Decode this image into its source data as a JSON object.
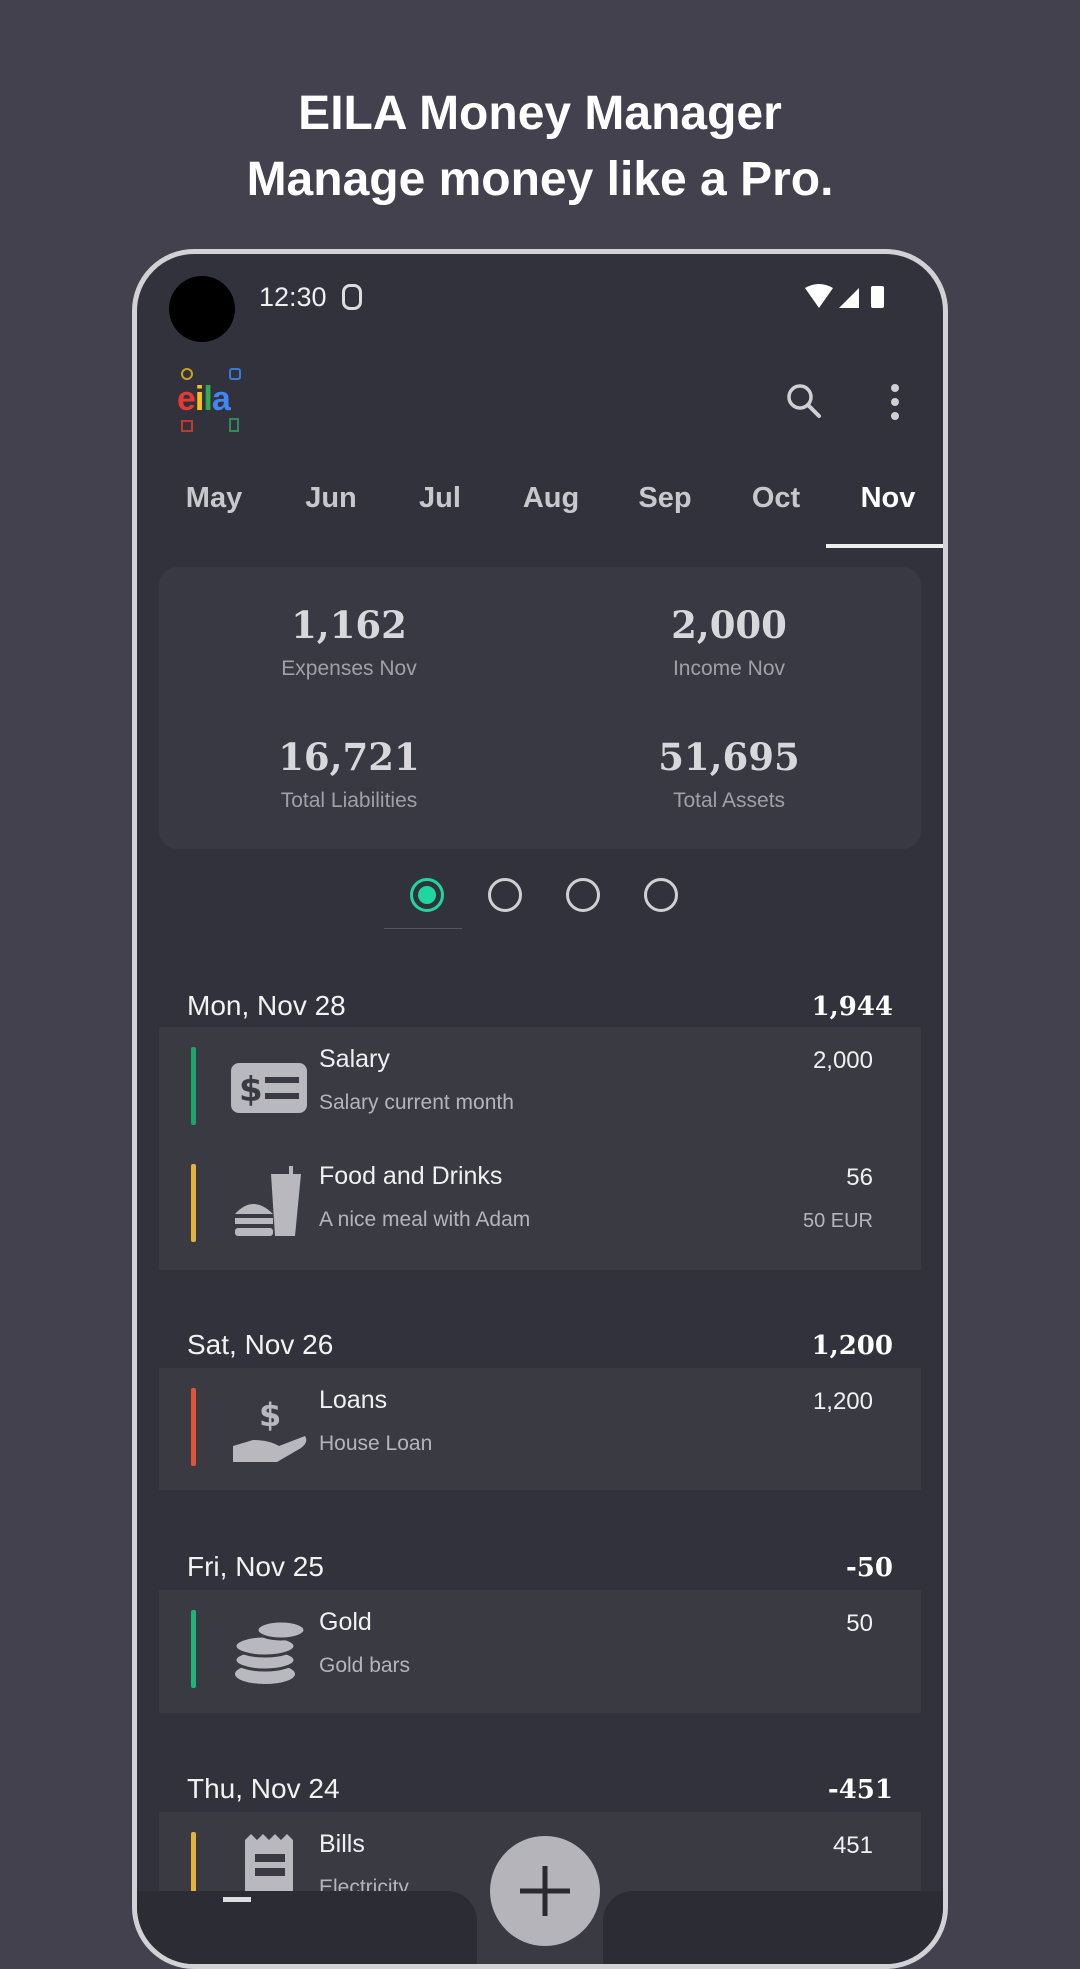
{
  "headline": {
    "line1": "EILA Money Manager",
    "line2": "Manage money like a Pro."
  },
  "status_bar": {
    "time": "12:30"
  },
  "app": {
    "logo_text": "eila",
    "icons": [
      "search-icon",
      "more-vert-icon"
    ]
  },
  "months": [
    "May",
    "Jun",
    "Jul",
    "Aug",
    "Sep",
    "Oct",
    "Nov"
  ],
  "selected_month": "Nov",
  "summary": [
    {
      "value": "1,162",
      "label": "Expenses Nov"
    },
    {
      "value": "2,000",
      "label": "Income Nov"
    },
    {
      "value": "16,721",
      "label": "Total Liabilities"
    },
    {
      "value": "51,695",
      "label": "Total Assets"
    }
  ],
  "pager": {
    "pages": 4,
    "active": 1,
    "accent": "#1fd6a0"
  },
  "days": [
    {
      "date": "Mon, Nov 28",
      "total": "1,944",
      "items": [
        {
          "title": "Salary",
          "note": "Salary current month",
          "amount": "2,000",
          "icon": "salary-icon",
          "color": "#1fa36b"
        },
        {
          "title": "Food and Drinks",
          "note": "A nice meal with Adam",
          "amount": "56",
          "original": "50 EUR",
          "icon": "food-icon",
          "color": "#e6b33a"
        }
      ]
    },
    {
      "date": "Sat, Nov 26",
      "total": "1,200",
      "items": [
        {
          "title": "Loans",
          "note": "House Loan",
          "amount": "1,200",
          "icon": "loan-hand-icon",
          "color": "#e0553a"
        }
      ]
    },
    {
      "date": "Fri, Nov 25",
      "total": "-50",
      "items": [
        {
          "title": "Gold",
          "note": "Gold bars",
          "amount": "50",
          "icon": "coins-icon",
          "color": "#1fb57a"
        }
      ]
    },
    {
      "date": "Thu, Nov 24",
      "total": "-451",
      "items": [
        {
          "title": "Bills",
          "note": "Electricity",
          "amount": "451",
          "icon": "receipt-icon",
          "color": "#e6b33a"
        }
      ]
    }
  ],
  "fab": {
    "icon": "plus-icon"
  }
}
